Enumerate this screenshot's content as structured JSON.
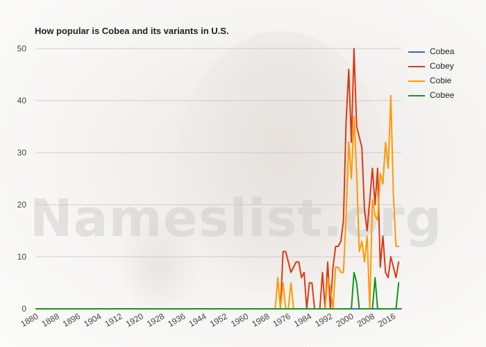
{
  "title": "How popular is Cobea and its variants in U.S.",
  "watermark": "Nameslist.org",
  "chart_data": {
    "type": "line",
    "title": "How popular is Cobea and its variants in U.S.",
    "xlabel": "",
    "ylabel": "",
    "xlim": [
      1880,
      2019
    ],
    "ylim": [
      0,
      50
    ],
    "x_ticks": [
      1880,
      1888,
      1896,
      1904,
      1912,
      1920,
      1928,
      1936,
      1944,
      1952,
      1960,
      1968,
      1976,
      1984,
      1992,
      2000,
      2008,
      2016
    ],
    "y_ticks": [
      0,
      10,
      20,
      30,
      40,
      50
    ],
    "grid": true,
    "legend_position": "right",
    "series": [
      {
        "name": "Cobea",
        "color": "#3366cc",
        "points": [
          [
            1880,
            0
          ],
          [
            2019,
            0
          ]
        ]
      },
      {
        "name": "Cobey",
        "color": "#dc3912",
        "points": [
          [
            1880,
            0
          ],
          [
            1973,
            0
          ],
          [
            1974,
            11
          ],
          [
            1975,
            11
          ],
          [
            1976,
            9
          ],
          [
            1977,
            7
          ],
          [
            1978,
            8
          ],
          [
            1979,
            9
          ],
          [
            1980,
            9
          ],
          [
            1981,
            6
          ],
          [
            1982,
            7
          ],
          [
            1983,
            0
          ],
          [
            1984,
            5
          ],
          [
            1985,
            5
          ],
          [
            1986,
            0
          ],
          [
            1987,
            0
          ],
          [
            1988,
            0
          ],
          [
            1989,
            7
          ],
          [
            1990,
            0
          ],
          [
            1991,
            9
          ],
          [
            1992,
            0
          ],
          [
            1993,
            8
          ],
          [
            1994,
            12
          ],
          [
            1995,
            12
          ],
          [
            1996,
            13
          ],
          [
            1997,
            17
          ],
          [
            1998,
            36
          ],
          [
            1999,
            46
          ],
          [
            2000,
            32
          ],
          [
            2001,
            50
          ],
          [
            2002,
            35
          ],
          [
            2003,
            33
          ],
          [
            2004,
            31
          ],
          [
            2005,
            19
          ],
          [
            2006,
            15
          ],
          [
            2007,
            21
          ],
          [
            2008,
            27
          ],
          [
            2009,
            20
          ],
          [
            2010,
            27
          ],
          [
            2011,
            8
          ],
          [
            2012,
            14
          ],
          [
            2013,
            7
          ],
          [
            2014,
            6
          ],
          [
            2015,
            10
          ],
          [
            2016,
            8
          ],
          [
            2017,
            6
          ],
          [
            2018,
            9
          ]
        ]
      },
      {
        "name": "Cobie",
        "color": "#ff9900",
        "points": [
          [
            1880,
            0
          ],
          [
            1971,
            0
          ],
          [
            1972,
            6
          ],
          [
            1973,
            0
          ],
          [
            1974,
            5
          ],
          [
            1975,
            0
          ],
          [
            1976,
            0
          ],
          [
            1977,
            5
          ],
          [
            1978,
            0
          ],
          [
            1990,
            0
          ],
          [
            1991,
            6
          ],
          [
            1992,
            4
          ],
          [
            1993,
            0
          ],
          [
            1994,
            8
          ],
          [
            1995,
            8
          ],
          [
            1996,
            7
          ],
          [
            1997,
            7
          ],
          [
            1998,
            18
          ],
          [
            1999,
            32
          ],
          [
            2000,
            25
          ],
          [
            2001,
            37
          ],
          [
            2002,
            26
          ],
          [
            2003,
            11
          ],
          [
            2004,
            13
          ],
          [
            2005,
            9
          ],
          [
            2006,
            14
          ],
          [
            2007,
            0
          ],
          [
            2008,
            21
          ],
          [
            2009,
            18
          ],
          [
            2010,
            17
          ],
          [
            2011,
            26
          ],
          [
            2012,
            24
          ],
          [
            2013,
            32
          ],
          [
            2014,
            27
          ],
          [
            2015,
            41
          ],
          [
            2016,
            22
          ],
          [
            2017,
            12
          ],
          [
            2018,
            12
          ]
        ]
      },
      {
        "name": "Cobee",
        "color": "#109618",
        "points": [
          [
            1880,
            0
          ],
          [
            2000,
            0
          ],
          [
            2001,
            7
          ],
          [
            2002,
            5
          ],
          [
            2003,
            0
          ],
          [
            2008,
            0
          ],
          [
            2009,
            6
          ],
          [
            2010,
            0
          ],
          [
            2016,
            0
          ],
          [
            2017,
            0
          ],
          [
            2018,
            5
          ]
        ]
      }
    ]
  }
}
